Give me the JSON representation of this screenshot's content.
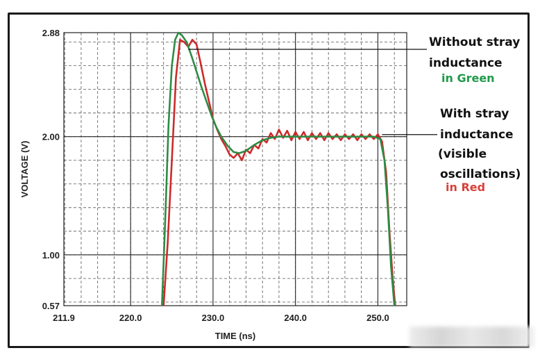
{
  "chart_data": {
    "type": "line",
    "xlabel": "TIME (ns)",
    "ylabel": "VOLTAGE (V)",
    "xlim": [
      211.9,
      253.5
    ],
    "ylim": [
      0.57,
      2.88
    ],
    "x_ticks": [
      {
        "value": 211.9,
        "label": "211.9"
      },
      {
        "value": 220.0,
        "label": "220.0"
      },
      {
        "value": 230.0,
        "label": "230.0"
      },
      {
        "value": 240.0,
        "label": "240.0"
      },
      {
        "value": 250.0,
        "label": "250.0"
      }
    ],
    "y_ticks": [
      {
        "value": 0.57,
        "label": "0.57"
      },
      {
        "value": 1.0,
        "label": "1.00"
      },
      {
        "value": 2.0,
        "label": "2.00"
      },
      {
        "value": 2.88,
        "label": "2.88"
      }
    ],
    "grid": true,
    "series": [
      {
        "name": "Without stray inductance",
        "color": "#2e8b45",
        "x": [
          223.8,
          224.2,
          224.6,
          225.0,
          225.4,
          225.8,
          226.2,
          226.8,
          227.4,
          228.0,
          228.6,
          229.2,
          229.8,
          230.4,
          231.0,
          231.8,
          232.5,
          233.2,
          234.0,
          235.0,
          236.0,
          237.0,
          238.0,
          240.0,
          242.0,
          244.0,
          246.0,
          248.0,
          249.5,
          250.3,
          250.8,
          251.2,
          251.6,
          252.0
        ],
        "y": [
          0.57,
          1.3,
          2.1,
          2.6,
          2.82,
          2.88,
          2.86,
          2.8,
          2.68,
          2.55,
          2.42,
          2.3,
          2.18,
          2.08,
          2.0,
          1.92,
          1.87,
          1.86,
          1.88,
          1.93,
          1.97,
          1.99,
          2.0,
          2.0,
          2.0,
          2.0,
          2.0,
          2.0,
          2.0,
          1.98,
          1.8,
          1.4,
          0.9,
          0.57
        ]
      },
      {
        "name": "With stray inductance",
        "color": "#cc2a2a",
        "x": [
          224.0,
          224.5,
          225.0,
          225.5,
          226.0,
          226.5,
          227.0,
          227.5,
          228.0,
          228.5,
          229.0,
          229.5,
          230.0,
          230.5,
          231.0,
          231.5,
          232.0,
          232.5,
          233.0,
          233.5,
          234.0,
          234.5,
          235.0,
          235.5,
          236.0,
          236.5,
          237.0,
          237.5,
          238.0,
          238.5,
          239.0,
          239.5,
          240.0,
          240.5,
          241.0,
          241.5,
          242.0,
          242.5,
          243.0,
          243.5,
          244.0,
          244.5,
          245.0,
          245.5,
          246.0,
          246.5,
          247.0,
          247.5,
          248.0,
          248.5,
          249.0,
          249.5,
          250.0,
          250.5,
          251.0,
          251.4,
          251.8,
          252.1
        ],
        "y": [
          0.57,
          1.1,
          1.8,
          2.5,
          2.82,
          2.8,
          2.76,
          2.82,
          2.78,
          2.62,
          2.45,
          2.3,
          2.15,
          2.06,
          1.98,
          1.92,
          1.85,
          1.82,
          1.86,
          1.8,
          1.89,
          1.86,
          1.93,
          1.9,
          1.98,
          1.95,
          2.03,
          1.98,
          2.06,
          1.99,
          2.05,
          1.97,
          2.04,
          1.98,
          2.04,
          1.97,
          2.03,
          1.98,
          2.03,
          1.97,
          2.03,
          1.98,
          2.02,
          1.97,
          2.02,
          1.98,
          2.02,
          1.97,
          2.02,
          1.98,
          2.02,
          1.98,
          2.02,
          1.96,
          1.7,
          1.2,
          0.8,
          0.57
        ]
      }
    ],
    "annotations": [
      {
        "lines": [
          "Without stray",
          "inductance"
        ],
        "sub": "in Green",
        "sub_color": "#1f9a4a",
        "target": {
          "x": 227.0,
          "y": 2.8
        }
      },
      {
        "lines": [
          "With stray",
          "inductance",
          "(visible",
          "oscillations)"
        ],
        "sub": "in Red",
        "sub_color": "#d8413a",
        "target": {
          "x": 250.5,
          "y": 2.0
        }
      }
    ]
  }
}
